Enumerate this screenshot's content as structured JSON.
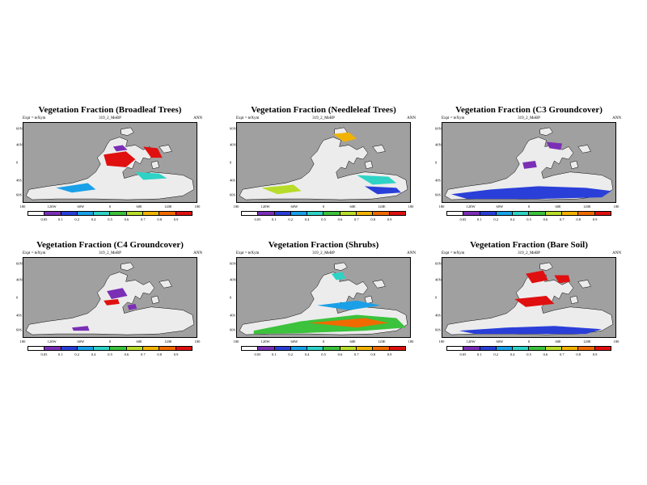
{
  "chart_data": [
    {
      "type": "heatmap",
      "title": "Vegetation Fraction (Broadleaf Trees)",
      "subtitle_left": "Expt = teXym",
      "subtitle_center": "319_2_MeBP",
      "subtitle_right": "ANN",
      "y_ticks": [
        "60N",
        "40N",
        "0",
        "40S",
        "60S"
      ],
      "x_ticks": [
        "180",
        "120W",
        "60W",
        "0",
        "60E",
        "120E",
        "180"
      ],
      "colorbar_labels": [
        "0.05",
        "0.1",
        "0.2",
        "0.4",
        "0.5",
        "0.6",
        "0.7",
        "0.8",
        "0.9"
      ]
    },
    {
      "type": "heatmap",
      "title": "Vegetation Fraction (Needleleaf Trees)",
      "subtitle_left": "Expt = teXym",
      "subtitle_center": "319_2_MeBP",
      "subtitle_right": "ANN",
      "y_ticks": [
        "60N",
        "40N",
        "0",
        "40S",
        "60S"
      ],
      "x_ticks": [
        "180",
        "120W",
        "60W",
        "0",
        "60E",
        "120E",
        "180"
      ],
      "colorbar_labels": [
        "0.05",
        "0.1",
        "0.2",
        "0.4",
        "0.5",
        "0.6",
        "0.7",
        "0.8",
        "0.9"
      ]
    },
    {
      "type": "heatmap",
      "title": "Vegetation Fraction (C3 Groundcover)",
      "subtitle_left": "Expt = teXym",
      "subtitle_center": "319_2_MeBP",
      "subtitle_right": "ANN",
      "y_ticks": [
        "60N",
        "40N",
        "0",
        "40S",
        "60S"
      ],
      "x_ticks": [
        "180",
        "120W",
        "60W",
        "0",
        "60E",
        "120E",
        "180"
      ],
      "colorbar_labels": [
        "0.05",
        "0.1",
        "0.2",
        "0.4",
        "0.5",
        "0.6",
        "0.7",
        "0.8",
        "0.9"
      ]
    },
    {
      "type": "heatmap",
      "title": "Vegetation Fraction (C4 Groundcover)",
      "subtitle_left": "Expt = teXym",
      "subtitle_center": "319_2_MeBP",
      "subtitle_right": "ANN",
      "y_ticks": [
        "60N",
        "40N",
        "0",
        "40S",
        "60S"
      ],
      "x_ticks": [
        "180",
        "120W",
        "60W",
        "0",
        "60E",
        "120E",
        "180"
      ],
      "colorbar_labels": [
        "0.05",
        "0.1",
        "0.2",
        "0.4",
        "0.5",
        "0.6",
        "0.7",
        "0.8",
        "0.9"
      ]
    },
    {
      "type": "heatmap",
      "title": "Vegetation Fraction (Shrubs)",
      "subtitle_left": "Expt = teXym",
      "subtitle_center": "319_2_MeBP",
      "subtitle_right": "ANN",
      "y_ticks": [
        "60N",
        "40N",
        "0",
        "40S",
        "60S"
      ],
      "x_ticks": [
        "180",
        "120W",
        "60W",
        "0",
        "60E",
        "120E",
        "180"
      ],
      "colorbar_labels": [
        "0.05",
        "0.1",
        "0.2",
        "0.4",
        "0.5",
        "0.6",
        "0.7",
        "0.8",
        "0.9"
      ]
    },
    {
      "type": "heatmap",
      "title": "Vegetation Fraction (Bare Soil)",
      "subtitle_left": "Expt = teXym",
      "subtitle_center": "319_2_MeBP",
      "subtitle_right": "ANN",
      "y_ticks": [
        "60N",
        "40N",
        "0",
        "40S",
        "60S"
      ],
      "x_ticks": [
        "180",
        "120W",
        "60W",
        "0",
        "60E",
        "120E",
        "180"
      ],
      "colorbar_labels": [
        "0.05",
        "0.1",
        "0.2",
        "0.4",
        "0.5",
        "0.6",
        "0.7",
        "0.8",
        "0.9"
      ]
    }
  ],
  "colors": {
    "ocean": "#a0a0a0",
    "land_low": "#ececec",
    "scale": [
      "#ffffff",
      "#7b2fb5",
      "#2a3fd8",
      "#19a0e8",
      "#2ed3c6",
      "#3cc23c",
      "#b8dc2a",
      "#f2b300",
      "#f06a00",
      "#e01010"
    ]
  }
}
